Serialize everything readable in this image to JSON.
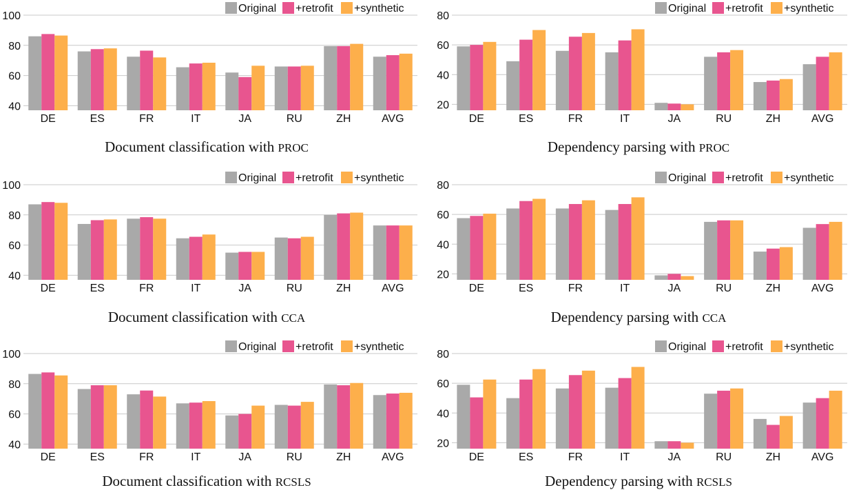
{
  "colors": {
    "original": "#a9a9a9",
    "retrofit": "#e8558f",
    "synthetic": "#fdaf4b"
  },
  "legend": [
    "Original",
    "+retrofit",
    "+synthetic"
  ],
  "chart_data": [
    {
      "type": "bar",
      "title": "Document classification with",
      "method": "PROC",
      "categories": [
        "DE",
        "ES",
        "FR",
        "IT",
        "JA",
        "RU",
        "ZH",
        "AVG"
      ],
      "ylim": [
        37,
        100
      ],
      "yticks": [
        40,
        60,
        80,
        100
      ],
      "series": [
        {
          "name": "Original",
          "values": [
            86,
            76,
            72.5,
            65.5,
            62,
            66,
            79.5,
            72.5
          ]
        },
        {
          "name": "+retrofit",
          "values": [
            87.5,
            77.5,
            76.5,
            68,
            59,
            66,
            79.5,
            73.5
          ]
        },
        {
          "name": "+synthetic",
          "values": [
            86.5,
            78,
            72,
            68.5,
            66.5,
            66.5,
            81,
            74.5
          ]
        }
      ]
    },
    {
      "type": "bar",
      "title": "Dependency parsing with",
      "method": "PROC",
      "categories": [
        "DE",
        "ES",
        "FR",
        "IT",
        "JA",
        "RU",
        "ZH",
        "AVG"
      ],
      "ylim": [
        16,
        80
      ],
      "yticks": [
        20,
        40,
        60,
        80
      ],
      "series": [
        {
          "name": "Original",
          "values": [
            59,
            49,
            56,
            55,
            21,
            52,
            35,
            47
          ]
        },
        {
          "name": "+retrofit",
          "values": [
            60,
            63.5,
            65.5,
            63,
            20.5,
            55,
            36,
            52
          ]
        },
        {
          "name": "+synthetic",
          "values": [
            62,
            70,
            68,
            70.5,
            20,
            56.5,
            37,
            55
          ]
        }
      ]
    },
    {
      "type": "bar",
      "title": "Document classification with",
      "method": "CCA",
      "categories": [
        "DE",
        "ES",
        "FR",
        "IT",
        "JA",
        "RU",
        "ZH",
        "AVG"
      ],
      "ylim": [
        37,
        100
      ],
      "yticks": [
        40,
        60,
        80,
        100
      ],
      "series": [
        {
          "name": "Original",
          "values": [
            87,
            74,
            77.5,
            64.5,
            55,
            65,
            80,
            73
          ]
        },
        {
          "name": "+retrofit",
          "values": [
            88.5,
            76.5,
            78.5,
            65.5,
            55.5,
            64.5,
            81,
            73
          ]
        },
        {
          "name": "+synthetic",
          "values": [
            88,
            77,
            77.5,
            67,
            55.5,
            65.5,
            81.5,
            73
          ]
        }
      ]
    },
    {
      "type": "bar",
      "title": "Dependency parsing with",
      "method": "CCA",
      "categories": [
        "DE",
        "ES",
        "FR",
        "IT",
        "JA",
        "RU",
        "ZH",
        "AVG"
      ],
      "ylim": [
        16,
        80
      ],
      "yticks": [
        20,
        40,
        60,
        80
      ],
      "series": [
        {
          "name": "Original",
          "values": [
            57.5,
            64,
            64,
            63,
            19,
            55,
            35,
            51
          ]
        },
        {
          "name": "+retrofit",
          "values": [
            59,
            69,
            67,
            67,
            20,
            56,
            37,
            53.5
          ]
        },
        {
          "name": "+synthetic",
          "values": [
            60.5,
            70.5,
            69.5,
            71.5,
            18.5,
            56,
            38,
            55
          ]
        }
      ]
    },
    {
      "type": "bar",
      "title": "Document classification with",
      "method": "RCSLS",
      "categories": [
        "DE",
        "ES",
        "FR",
        "IT",
        "JA",
        "RU",
        "ZH",
        "AVG"
      ],
      "ylim": [
        37,
        100
      ],
      "yticks": [
        40,
        60,
        80,
        100
      ],
      "series": [
        {
          "name": "Original",
          "values": [
            86.5,
            76.5,
            73,
            67,
            59,
            66,
            79.5,
            72.5
          ]
        },
        {
          "name": "+retrofit",
          "values": [
            87.5,
            79,
            75.5,
            67.5,
            60,
            65.5,
            79,
            73.5
          ]
        },
        {
          "name": "+synthetic",
          "values": [
            85.5,
            79,
            71.5,
            68.5,
            65.5,
            68,
            80.5,
            74
          ]
        }
      ]
    },
    {
      "type": "bar",
      "title": "Dependency parsing with",
      "method": "RCSLS",
      "categories": [
        "DE",
        "ES",
        "FR",
        "IT",
        "JA",
        "RU",
        "ZH",
        "AVG"
      ],
      "ylim": [
        16,
        80
      ],
      "yticks": [
        20,
        40,
        60,
        80
      ],
      "series": [
        {
          "name": "Original",
          "values": [
            59,
            50,
            56.5,
            57,
            21,
            53,
            36,
            47
          ]
        },
        {
          "name": "+retrofit",
          "values": [
            50.5,
            62.5,
            65.5,
            63.5,
            21,
            55,
            32,
            50
          ]
        },
        {
          "name": "+synthetic",
          "values": [
            62.5,
            69.5,
            68.5,
            71,
            20,
            56.5,
            38,
            55
          ]
        }
      ]
    }
  ]
}
